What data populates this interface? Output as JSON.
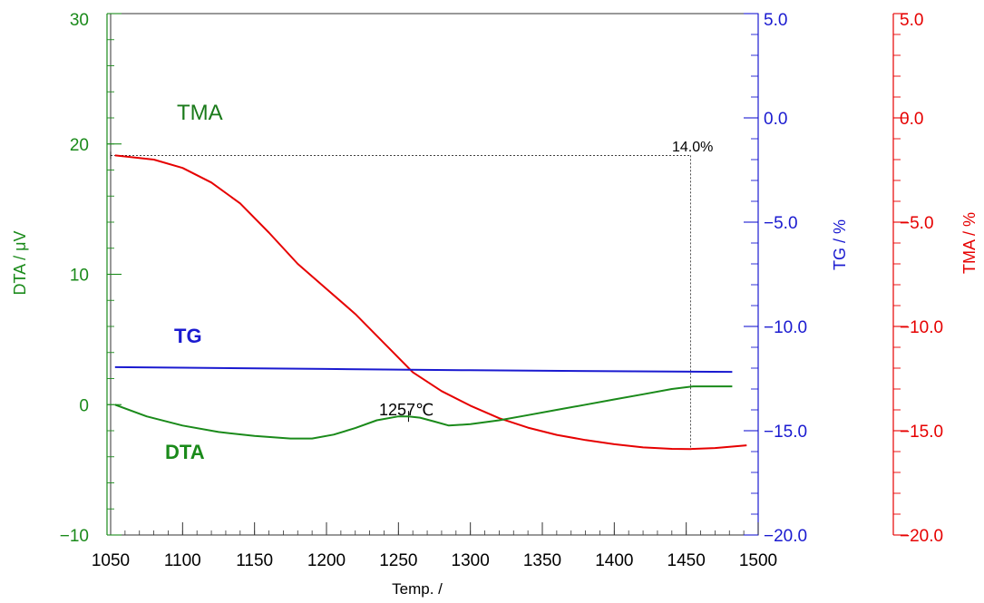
{
  "chart_data": {
    "type": "line",
    "title": "",
    "xlabel": "Temp. /",
    "x_range": [
      1050,
      1500
    ],
    "x_ticks": [
      1050,
      1100,
      1150,
      1200,
      1250,
      1300,
      1350,
      1400,
      1450,
      1500
    ],
    "axes": {
      "dta": {
        "label": "DTA / μV",
        "range": [
          -10,
          30
        ],
        "ticks": [
          30,
          20,
          10,
          0,
          -10
        ],
        "tick_labels": [
          "30",
          "20",
          "10",
          "0",
          "−10"
        ],
        "color": "#1a8a1a"
      },
      "tg": {
        "label": "TG / %",
        "range": [
          -20,
          5
        ],
        "ticks": [
          5,
          0,
          -5,
          -10,
          -15,
          -20
        ],
        "tick_labels": [
          "5.0",
          "0.0",
          "−5.0",
          "−10.0",
          "−15.0",
          "−20.0"
        ],
        "color": "#1a1ad0"
      },
      "tma": {
        "label": "TMA / %",
        "range": [
          -20,
          5
        ],
        "ticks": [
          5,
          0,
          -5,
          -10,
          -15,
          -20
        ],
        "tick_labels": [
          "5.0",
          "0.0",
          "−5.0",
          "−10.0",
          "−15.0",
          "−20.0"
        ],
        "color": "#e60000"
      }
    },
    "series": [
      {
        "name": "TMA",
        "axis": "tma",
        "color": "#e60000",
        "x": [
          1053,
          1080,
          1100,
          1120,
          1140,
          1160,
          1180,
          1200,
          1220,
          1240,
          1260,
          1280,
          1300,
          1320,
          1340,
          1360,
          1380,
          1400,
          1420,
          1440,
          1453,
          1470,
          1492
        ],
        "y": [
          -1.8,
          -2.0,
          -2.4,
          -3.1,
          -4.1,
          -5.5,
          -7.0,
          -8.2,
          -9.4,
          -10.8,
          -12.2,
          -13.1,
          -13.8,
          -14.4,
          -14.85,
          -15.2,
          -15.45,
          -15.65,
          -15.8,
          -15.87,
          -15.88,
          -15.83,
          -15.7
        ]
      },
      {
        "name": "TG",
        "axis": "tg",
        "color": "#1a1ad0",
        "x": [
          1053,
          1100,
          1200,
          1300,
          1400,
          1482
        ],
        "y": [
          -11.95,
          -11.98,
          -12.04,
          -12.1,
          -12.15,
          -12.18
        ]
      },
      {
        "name": "DTA",
        "axis": "dta",
        "color": "#1a8a1a",
        "x": [
          1053,
          1075,
          1100,
          1125,
          1150,
          1175,
          1190,
          1205,
          1220,
          1235,
          1250,
          1257,
          1265,
          1275,
          1285,
          1300,
          1320,
          1340,
          1360,
          1380,
          1400,
          1420,
          1440,
          1455,
          1470,
          1482
        ],
        "y": [
          0.0,
          -0.9,
          -1.6,
          -2.1,
          -2.4,
          -2.6,
          -2.6,
          -2.3,
          -1.8,
          -1.2,
          -0.9,
          -0.9,
          -1.0,
          -1.3,
          -1.6,
          -1.5,
          -1.2,
          -0.8,
          -0.4,
          0.0,
          0.4,
          0.8,
          1.2,
          1.4,
          1.4,
          1.4
        ]
      }
    ],
    "labels": {
      "tma": "TMA",
      "tg": "TG",
      "dta": "DTA"
    },
    "annotations": {
      "peak_label": "1257℃",
      "peak_x": 1257,
      "peak_dta": -0.9,
      "shrink_label": "14.0%",
      "shrink_x": 1453,
      "shrink_top_tma": -1.8,
      "shrink_bottom_tma": -15.88
    }
  }
}
